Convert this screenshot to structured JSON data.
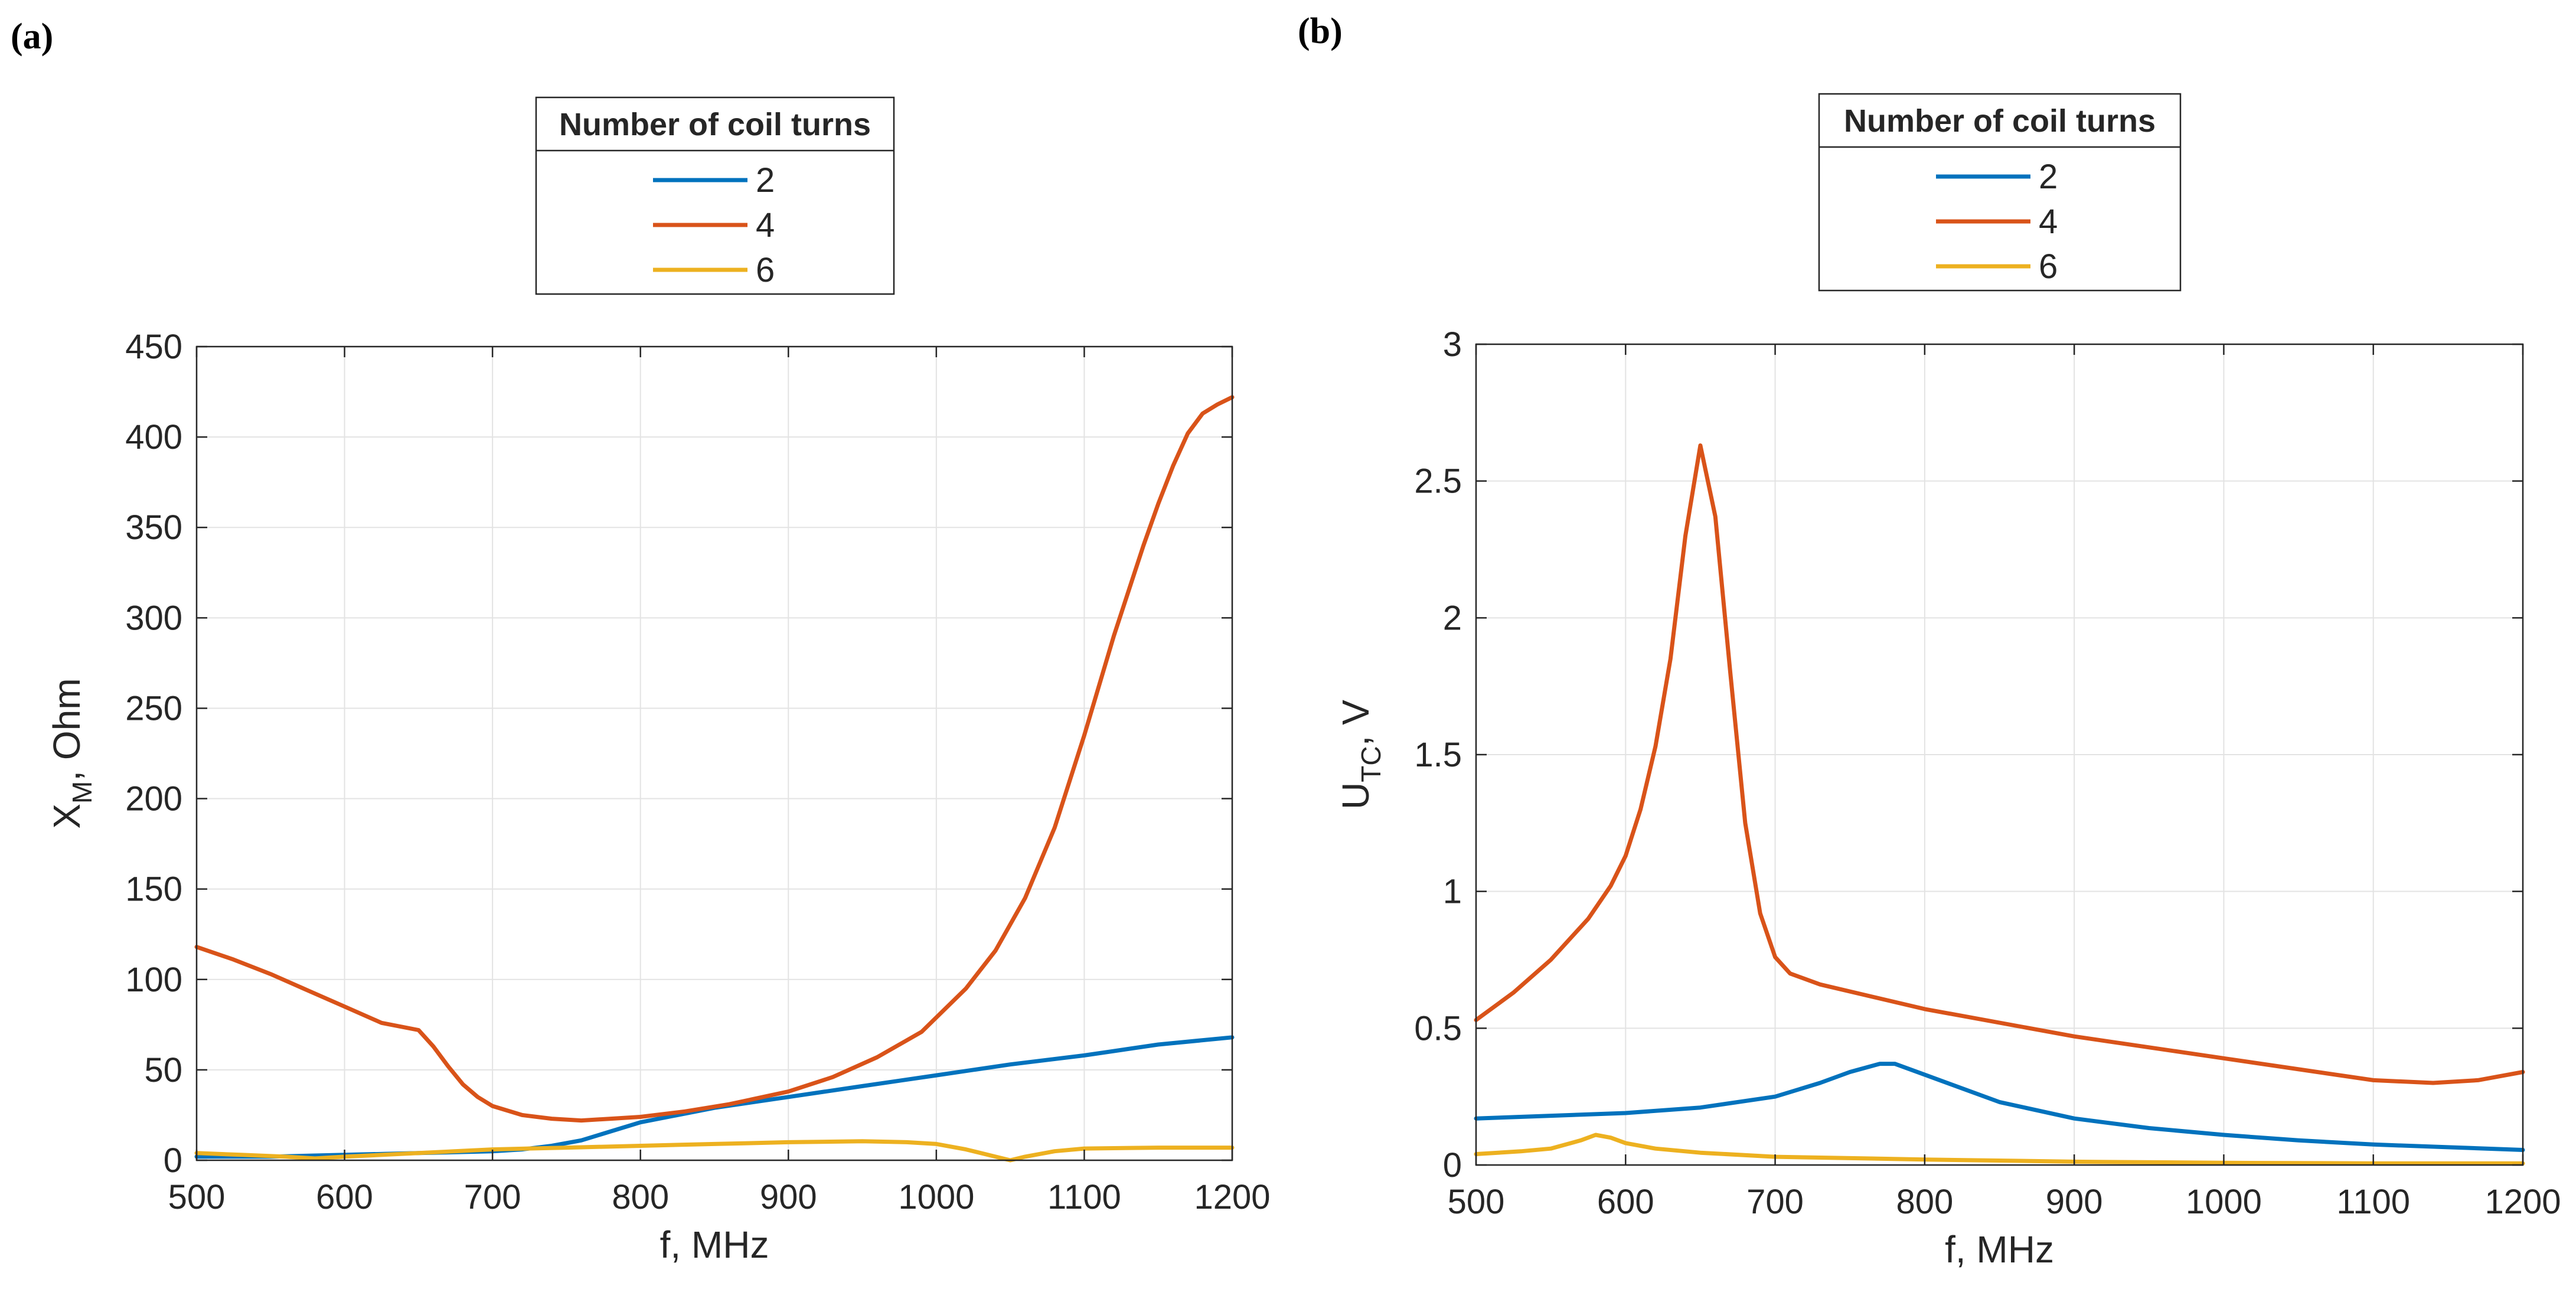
{
  "chart_data": [
    {
      "panel_label": "(a)",
      "type": "line",
      "xlabel": "f, MHz",
      "ylabel": "X",
      "ylabel_sub": "M",
      "ylabel_tail": ", Ohm",
      "xlim": [
        500,
        1200
      ],
      "ylim": [
        0,
        450
      ],
      "xticks": [
        500,
        600,
        700,
        800,
        900,
        1000,
        1100,
        1200
      ],
      "yticks": [
        0,
        50,
        100,
        150,
        200,
        250,
        300,
        350,
        400,
        450
      ],
      "grid": true,
      "legend": {
        "title": "Number of coil turns",
        "placement": "top-center-outside",
        "entries": [
          "2",
          "4",
          "6"
        ]
      },
      "series": [
        {
          "name": "2",
          "color": "#0072BD",
          "x": [
            500,
            550,
            600,
            650,
            700,
            720,
            740,
            760,
            780,
            800,
            850,
            900,
            950,
            1000,
            1050,
            1100,
            1150,
            1200
          ],
          "y": [
            2,
            2,
            3,
            4,
            5,
            6,
            8,
            11,
            16,
            21,
            29,
            35,
            41,
            47,
            53,
            58,
            64,
            68
          ]
        },
        {
          "name": "4",
          "color": "#D95319",
          "x": [
            500,
            525,
            550,
            575,
            600,
            625,
            650,
            660,
            670,
            680,
            690,
            700,
            720,
            740,
            760,
            780,
            800,
            830,
            860,
            900,
            930,
            960,
            990,
            1020,
            1040,
            1060,
            1080,
            1100,
            1120,
            1130,
            1140,
            1150,
            1160,
            1170,
            1180,
            1190,
            1200
          ],
          "y": [
            118,
            111,
            103,
            94,
            85,
            76,
            72,
            63,
            52,
            42,
            35,
            30,
            25,
            23,
            22,
            23,
            24,
            27,
            31,
            38,
            46,
            57,
            71,
            95,
            116,
            145,
            184,
            235,
            290,
            315,
            340,
            363,
            384,
            402,
            413,
            418,
            422
          ]
        },
        {
          "name": "6",
          "color": "#EDB120",
          "x": [
            500,
            530,
            560,
            580,
            600,
            650,
            700,
            750,
            800,
            850,
            900,
            950,
            980,
            1000,
            1020,
            1040,
            1050,
            1060,
            1080,
            1100,
            1150,
            1200
          ],
          "y": [
            4,
            3,
            2,
            1,
            2,
            4,
            6,
            7,
            8,
            9,
            10,
            10.5,
            10,
            9,
            6,
            2,
            0,
            2,
            5,
            6.5,
            7,
            7
          ]
        }
      ]
    },
    {
      "panel_label": "(b)",
      "type": "line",
      "xlabel": "f, MHz",
      "ylabel": "U",
      "ylabel_sub": "TC",
      "ylabel_tail": ", V",
      "xlim": [
        500,
        1200
      ],
      "ylim": [
        0,
        3
      ],
      "xticks": [
        500,
        600,
        700,
        800,
        900,
        1000,
        1100,
        1200
      ],
      "yticks": [
        0,
        0.5,
        1,
        1.5,
        2,
        2.5,
        3
      ],
      "grid": true,
      "legend": {
        "title": "Number of coil turns",
        "placement": "top-center-outside",
        "entries": [
          "2",
          "4",
          "6"
        ]
      },
      "series": [
        {
          "name": "2",
          "color": "#0072BD",
          "x": [
            500,
            550,
            600,
            650,
            700,
            730,
            750,
            770,
            780,
            800,
            850,
            900,
            950,
            1000,
            1050,
            1100,
            1150,
            1200
          ],
          "y": [
            0.17,
            0.18,
            0.19,
            0.21,
            0.25,
            0.3,
            0.34,
            0.37,
            0.37,
            0.33,
            0.23,
            0.17,
            0.135,
            0.11,
            0.09,
            0.075,
            0.065,
            0.055
          ]
        },
        {
          "name": "4",
          "color": "#D95319",
          "x": [
            500,
            525,
            550,
            575,
            590,
            600,
            610,
            620,
            630,
            640,
            650,
            660,
            670,
            680,
            690,
            700,
            710,
            730,
            800,
            900,
            1000,
            1100,
            1140,
            1170,
            1200
          ],
          "y": [
            0.53,
            0.63,
            0.75,
            0.9,
            1.02,
            1.13,
            1.3,
            1.53,
            1.85,
            2.3,
            2.63,
            2.37,
            1.8,
            1.25,
            0.92,
            0.76,
            0.7,
            0.66,
            0.57,
            0.47,
            0.39,
            0.31,
            0.3,
            0.31,
            0.34
          ]
        },
        {
          "name": "6",
          "color": "#EDB120",
          "x": [
            500,
            530,
            550,
            570,
            580,
            590,
            600,
            620,
            650,
            700,
            800,
            900,
            1000,
            1100,
            1200
          ],
          "y": [
            0.04,
            0.05,
            0.06,
            0.09,
            0.11,
            0.1,
            0.08,
            0.06,
            0.045,
            0.03,
            0.02,
            0.012,
            0.008,
            0.006,
            0.006
          ]
        }
      ]
    }
  ]
}
